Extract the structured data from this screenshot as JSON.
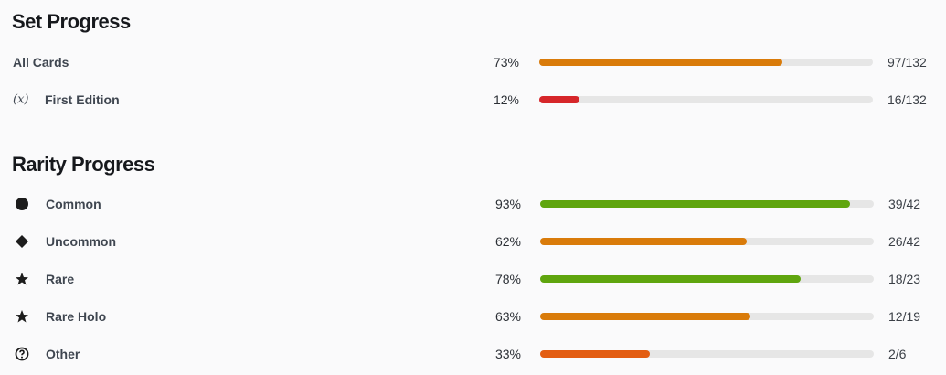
{
  "set_progress": {
    "title": "Set Progress",
    "rows": [
      {
        "label": "All Cards",
        "percent": 73,
        "percent_label": "73%",
        "count": "97/132",
        "color": "#d97b0a"
      },
      {
        "icon": "(x)",
        "label": "First Edition",
        "percent": 12,
        "percent_label": "12%",
        "count": "16/132",
        "color": "#d6262a"
      }
    ]
  },
  "rarity_progress": {
    "title": "Rarity Progress",
    "rows": [
      {
        "label": "Common",
        "percent": 93,
        "percent_label": "93%",
        "count": "39/42",
        "color": "#5fa50e"
      },
      {
        "label": "Uncommon",
        "percent": 62,
        "percent_label": "62%",
        "count": "26/42",
        "color": "#d97b0a"
      },
      {
        "label": "Rare",
        "percent": 78,
        "percent_label": "78%",
        "count": "18/23",
        "color": "#5fa50e"
      },
      {
        "label": "Rare Holo",
        "percent": 63,
        "percent_label": "63%",
        "count": "12/19",
        "color": "#d97b0a"
      },
      {
        "label": "Other",
        "percent": 33,
        "percent_label": "33%",
        "count": "2/6",
        "color": "#e35d12"
      }
    ]
  }
}
